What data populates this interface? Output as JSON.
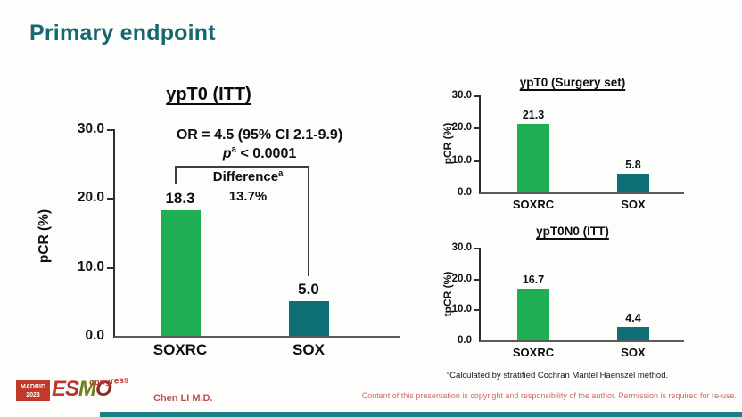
{
  "slide": {
    "title": "Primary endpoint",
    "footnote_sup": "a",
    "footnote_text": "Calculated by stratified Cochran Mantel Haenszel method.",
    "footer": {
      "author": "Chen LI M.D.",
      "copyright": "Content of this presentation is copyright and responsibility of the author. Permission is required for re-use.",
      "logo": {
        "venue": "MADRID",
        "year": "2023",
        "letters": [
          "E",
          "S",
          "M",
          "O"
        ],
        "suffix": "congress"
      }
    }
  },
  "colors": {
    "title_teal": "#15686f",
    "bar_green": "#1fae54",
    "bar_teal": "#0e6f76",
    "logo_red": "#c0392b",
    "author_red": "#c0504d",
    "copyright_red": "#cd6d69",
    "footer_bar_teal": "#1b7f87"
  },
  "chart_data": [
    {
      "id": "ypt0-itt",
      "type": "bar",
      "title": "ypT0 (ITT)",
      "ylabel": "pCR (%)",
      "ylim": [
        0,
        30
      ],
      "yticks": [
        "30.0",
        "20.0",
        "10.0",
        "0.0"
      ],
      "grid": false,
      "legend": "none",
      "categories": [
        "SOXRC",
        "SOX"
      ],
      "values": [
        18.3,
        5.0
      ],
      "value_labels": [
        "18.3",
        "5.0"
      ],
      "bar_colors": [
        "#1fae54",
        "#0e6f76"
      ],
      "annotations": {
        "or": "OR = 4.5 (95% CI 2.1-9.9)",
        "p_italic": "p",
        "p_sup": "a",
        "p_rest": " < 0.0001",
        "diff_label": "Difference",
        "diff_sup": "a",
        "diff_value": "13.7%"
      }
    },
    {
      "id": "ypt0-surgery-set",
      "type": "bar",
      "title": "ypT0 (Surgery set)",
      "ylabel": "pCR (%)",
      "ylim": [
        0,
        30
      ],
      "yticks": [
        "30.0",
        "20.0",
        "10.0",
        "0.0"
      ],
      "grid": false,
      "legend": "none",
      "categories": [
        "SOXRC",
        "SOX"
      ],
      "values": [
        21.3,
        5.8
      ],
      "value_labels": [
        "21.3",
        "5.8"
      ],
      "bar_colors": [
        "#1fae54",
        "#0e6f76"
      ]
    },
    {
      "id": "ypt0n0-itt",
      "type": "bar",
      "title": "ypT0N0 (ITT)",
      "ylabel": "tpCR (%)",
      "ylim": [
        0,
        30
      ],
      "yticks": [
        "30.0",
        "20.0",
        "10.0",
        "0.0"
      ],
      "grid": false,
      "legend": "none",
      "categories": [
        "SOXRC",
        "SOX"
      ],
      "values": [
        16.7,
        4.4
      ],
      "value_labels": [
        "16.7",
        "4.4"
      ],
      "bar_colors": [
        "#1fae54",
        "#0e6f76"
      ]
    }
  ]
}
